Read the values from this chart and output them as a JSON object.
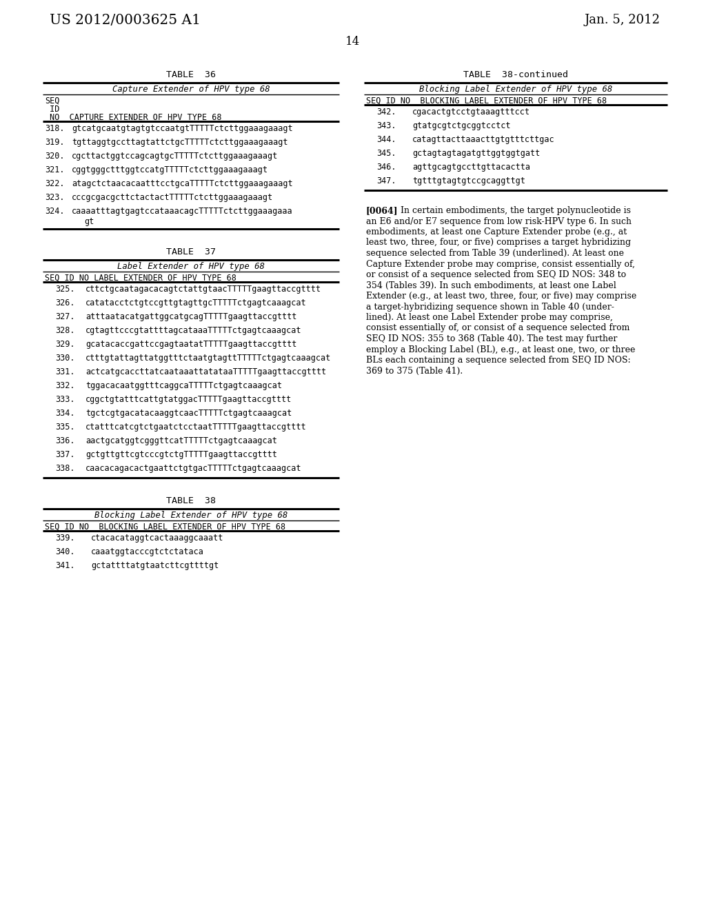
{
  "bg_color": "#ffffff",
  "header_left": "US 2012/0003625 A1",
  "header_right": "Jan. 5, 2012",
  "page_number": "14",
  "table36_title": "TABLE  36",
  "table36_subtitle": "Capture Extender of HPV type 68",
  "table36_col1": "SEQ",
  "table36_col2": " ID",
  "table36_col3": " NO  CAPTURE EXTENDER OF HPV TYPE 68",
  "table36_rows": [
    [
      "318.",
      "gtcatgcaatgtagtgtccaatgtTTTTTctcttggaaagaaagt"
    ],
    [
      "319.",
      "tgttaggtgccttagtattctgcTTTTTctcttggaaagaaagt"
    ],
    [
      "320.",
      "cgcttactggtccagcagtgcTTTTTctcttggaaagaaagt"
    ],
    [
      "321.",
      "cggtgggctttggtccatgTTTTTctcttggaaagaaagt"
    ],
    [
      "322.",
      "atagctctaacacaatttcctgcaTTTTTctcttggaaagaaagt"
    ],
    [
      "323.",
      "cccgcgacgcttctactactTTTTTctcttggaaagaaagt"
    ],
    [
      "324.",
      "caaaatttagtgagtccataaacagcTTTTTctcttggaaagaaa",
      "gt"
    ]
  ],
  "table37_title": "TABLE  37",
  "table37_subtitle": "Label Extender of HPV type 68",
  "table37_col": "SEQ ID NO LABEL EXTENDER OF HPV TYPE 68",
  "table37_rows": [
    [
      "325.",
      "cttctgcaatagacacagtctattgtaacTTTTTgaagttaccgtttt"
    ],
    [
      "326.",
      "catatacctctgtccgttgtagttgcTTTTTctgagtcaaagcat"
    ],
    [
      "327.",
      "atttaatacatgattggcatgcagTTTTTgaagttaccgtttt"
    ],
    [
      "328.",
      "cgtagttcccgtattttagcataaaTTTTTctgagtcaaagcat"
    ],
    [
      "329.",
      "gcatacaccgattccgagtaatatTTTTTgaagttaccgtttt"
    ],
    [
      "330.",
      "ctttgtattagttatggtttctaatgtagttTTTTTctgagtcaaagcat"
    ],
    [
      "331.",
      "actcatgcaccttatcaataaattatataaTTTTTgaagttaccgtttt"
    ],
    [
      "332.",
      "tggacacaatggtttcaggcaTTTTTctgagtcaaagcat"
    ],
    [
      "333.",
      "cggctgtatttcattgtatggacTTTTTgaagttaccgtttt"
    ],
    [
      "334.",
      "tgctcgtgacatacaaggtcaacTTTTTctgagtcaaagcat"
    ],
    [
      "335.",
      "ctatttcatcgtctgaatctcctaatTTTTTgaagttaccgtttt"
    ],
    [
      "336.",
      "aactgcatggtcgggttcatTTTTTctgagtcaaagcat"
    ],
    [
      "337.",
      "gctgttgttcgtcccgtctgTTTTTgaagttaccgtttt"
    ],
    [
      "338.",
      "caacacagacactgaattctgtgacTTTTTctgagtcaaagcat"
    ]
  ],
  "table38_title": "TABLE  38",
  "table38_subtitle": "Blocking Label Extender of HPV type 68",
  "table38_col": "SEQ ID NO  BLOCKING LABEL EXTENDER OF HPV TYPE 68",
  "table38_rows": [
    [
      "339.",
      "ctacacataggtcactaaaggcaaatt"
    ],
    [
      "340.",
      "caaatggtacccgtctctataca"
    ],
    [
      "341.",
      "gctattttatgtaatcttcgttttgt"
    ]
  ],
  "table38cont_title": "TABLE  38-continued",
  "table38cont_subtitle": "Blocking Label Extender of HPV type 68",
  "table38cont_col": "SEQ ID NO  BLOCKING LABEL EXTENDER OF HPV TYPE 68",
  "table38cont_rows": [
    [
      "342.",
      "cgacactgtcctgtaaagtttcct"
    ],
    [
      "343.",
      "gtatgcgtctgcggtcctct"
    ],
    [
      "344.",
      "catagttacttaaacttgtgtttcttgac"
    ],
    [
      "345.",
      "gctagtagtagatgttggtggtgatt"
    ],
    [
      "346.",
      "agttgcagtgccttgttacactta"
    ],
    [
      "347.",
      "tgtttgtagtgtccgcaggttgt"
    ]
  ],
  "paragraph_lines": [
    "[0064]   In certain embodiments, the target polynucleotide is",
    "an E6 and/or E7 sequence from low risk-HPV type 6. In such",
    "embodiments, at least one Capture Extender probe (e.g., at",
    "least two, three, four, or five) comprises a target hybridizing",
    "sequence selected from Table 39 (underlined). At least one",
    "Capture Extender probe may comprise, consist essentially of,",
    "or consist of a sequence selected from SEQ ID NOS: 348 to",
    "354 (Tables 39). In such embodiments, at least one Label",
    "Extender (e.g., at least two, three, four, or five) may comprise",
    "a target-hybridizing sequence shown in Table 40 (under-",
    "lined). At least one Label Extender probe may comprise,",
    "consist essentially of, or consist of a sequence selected from",
    "SEQ ID NOS: 355 to 368 (Table 40). The test may further",
    "employ a Blocking Label (BL), e.g., at least one, two, or three",
    "BLs each containing a sequence selected from SEQ ID NOS:",
    "369 to 375 (Table 41)."
  ]
}
